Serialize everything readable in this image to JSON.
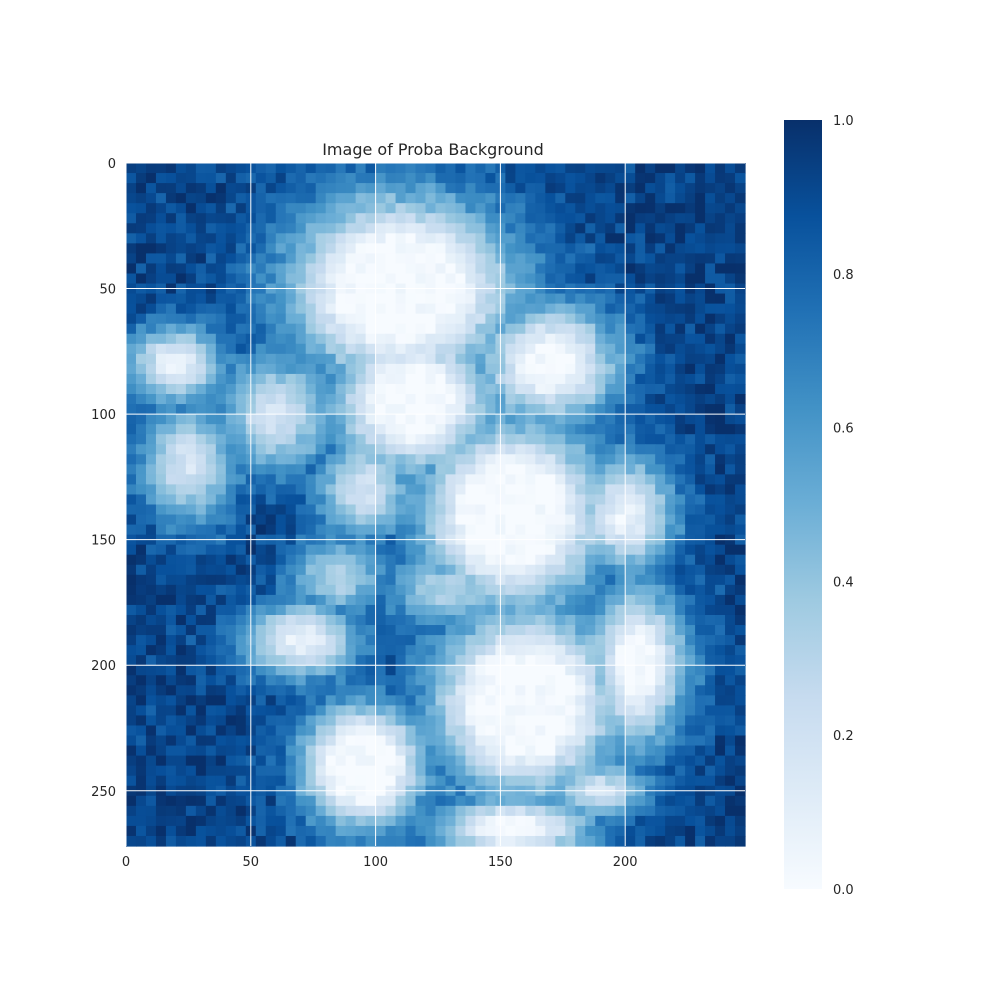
{
  "chart_data": {
    "type": "heatmap",
    "title": "Image of Proba Background",
    "xlabel": "",
    "ylabel": "",
    "image_width": 248,
    "image_height": 272,
    "x_ticks": [
      0,
      50,
      100,
      150,
      200
    ],
    "y_ticks": [
      0,
      50,
      100,
      150,
      200,
      250
    ],
    "x_tick_labels": [
      "0",
      "50",
      "100",
      "150",
      "200"
    ],
    "y_tick_labels": [
      "0",
      "50",
      "100",
      "150",
      "200",
      "250"
    ],
    "colormap": "Blues",
    "colormap_stops": [
      "#f7fbff",
      "#deebf7",
      "#c6dbef",
      "#9ecae1",
      "#6baed6",
      "#4292c6",
      "#2171b5",
      "#08519c",
      "#08306b"
    ],
    "vmin": 0.0,
    "vmax": 1.0,
    "colorbar": {
      "ticks": [
        0.0,
        0.2,
        0.4,
        0.6,
        0.8,
        1.0
      ],
      "tick_labels": [
        "0.0",
        "0.2",
        "0.4",
        "0.6",
        "0.8",
        "1.0"
      ],
      "placement": "right"
    },
    "grid": true,
    "grid_color": "#ffffff"
  }
}
